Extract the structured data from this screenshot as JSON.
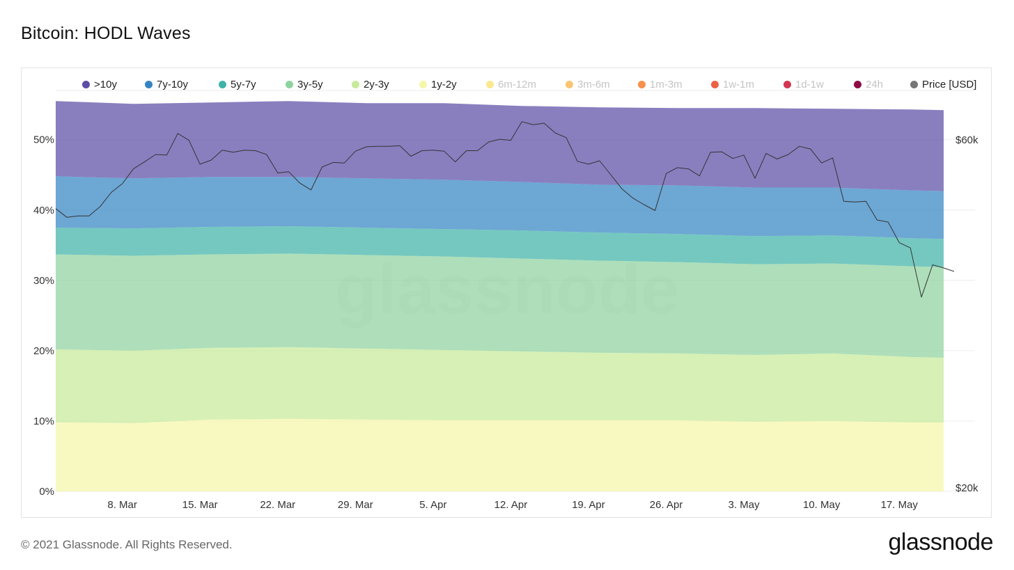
{
  "title": "Bitcoin: HODL Waves",
  "footer": "© 2021 Glassnode. All Rights Reserved.",
  "brand": "glassnode",
  "watermark": "glassnode",
  "legend": [
    {
      "label": ">10y",
      "color": "#5b4ea6",
      "active": true
    },
    {
      "label": "7y-10y",
      "color": "#3585c4",
      "active": true
    },
    {
      "label": "5y-7y",
      "color": "#40b3a8",
      "active": true
    },
    {
      "label": "3y-5y",
      "color": "#8fd2a0",
      "active": true
    },
    {
      "label": "2y-3y",
      "color": "#c8ea9a",
      "active": true
    },
    {
      "label": "1y-2y",
      "color": "#f5f7a8",
      "active": true
    },
    {
      "label": "6m-12m",
      "color": "#fbe88f",
      "active": false
    },
    {
      "label": "3m-6m",
      "color": "#fcc573",
      "active": false
    },
    {
      "label": "1m-3m",
      "color": "#f7914d",
      "active": false
    },
    {
      "label": "1w-1m",
      "color": "#ef5f45",
      "active": false
    },
    {
      "label": "1d-1w",
      "color": "#d33552",
      "active": false
    },
    {
      "label": "24h",
      "color": "#8e0b44",
      "active": false
    },
    {
      "label": "Price [USD]",
      "color": "#777777",
      "active": true
    }
  ],
  "chart_data": {
    "type": "area",
    "stacked": true,
    "x": [
      "2021-03-02",
      "2021-03-09",
      "2021-03-16",
      "2021-03-23",
      "2021-03-30",
      "2021-04-06",
      "2021-04-13",
      "2021-04-20",
      "2021-04-27",
      "2021-05-04",
      "2021-05-11",
      "2021-05-18",
      "2021-05-21"
    ],
    "x_tick_labels": [
      "8. Mar",
      "15. Mar",
      "22. Mar",
      "29. Mar",
      "5. Apr",
      "12. Apr",
      "19. Apr",
      "26. Apr",
      "3. May",
      "10. May",
      "17. May"
    ],
    "x_tick_dates": [
      "2021-03-08",
      "2021-03-15",
      "2021-03-22",
      "2021-03-29",
      "2021-04-05",
      "2021-04-12",
      "2021-04-19",
      "2021-04-26",
      "2021-05-03",
      "2021-05-10",
      "2021-05-17"
    ],
    "ylabel_ticks": [
      "0%",
      "10%",
      "20%",
      "30%",
      "40%",
      "50%"
    ],
    "ylim": [
      0,
      57
    ],
    "y2_ticks": [
      "$20k",
      "$60k"
    ],
    "y2_scale": "log",
    "y2lim": [
      20000,
      70000
    ],
    "series": [
      {
        "name": "1y-2y",
        "values": [
          9.8,
          9.7,
          10.2,
          10.3,
          10.2,
          10.1,
          10.1,
          10.1,
          10.1,
          9.9,
          10.0,
          9.8,
          9.8
        ]
      },
      {
        "name": "2y-3y",
        "values": [
          10.4,
          10.3,
          10.2,
          10.2,
          10.1,
          10.0,
          9.8,
          9.6,
          9.5,
          9.5,
          9.6,
          9.3,
          9.2
        ]
      },
      {
        "name": "3y-5y",
        "values": [
          13.5,
          13.5,
          13.3,
          13.3,
          13.3,
          13.3,
          13.2,
          13.1,
          13.0,
          12.9,
          12.8,
          12.9,
          12.9
        ]
      },
      {
        "name": "5y-7y",
        "values": [
          3.8,
          3.9,
          3.9,
          3.9,
          3.9,
          3.9,
          4.0,
          4.0,
          4.0,
          4.0,
          4.0,
          4.0,
          4.0
        ]
      },
      {
        "name": "7y-10y",
        "values": [
          7.3,
          7.1,
          7.1,
          7.0,
          7.0,
          7.0,
          6.9,
          6.8,
          6.9,
          6.9,
          6.8,
          6.8,
          6.8
        ]
      },
      {
        "name": ">10y",
        "values": [
          10.7,
          10.6,
          10.6,
          10.8,
          10.7,
          10.9,
          10.8,
          11.0,
          11.0,
          11.3,
          11.2,
          11.5,
          11.5
        ]
      }
    ],
    "price": {
      "name": "Price [USD]",
      "x": [
        "2021-03-02",
        "2021-03-03",
        "2021-03-04",
        "2021-03-05",
        "2021-03-06",
        "2021-03-07",
        "2021-03-08",
        "2021-03-09",
        "2021-03-10",
        "2021-03-11",
        "2021-03-12",
        "2021-03-13",
        "2021-03-14",
        "2021-03-15",
        "2021-03-16",
        "2021-03-17",
        "2021-03-18",
        "2021-03-19",
        "2021-03-20",
        "2021-03-21",
        "2021-03-22",
        "2021-03-23",
        "2021-03-24",
        "2021-03-25",
        "2021-03-26",
        "2021-03-27",
        "2021-03-28",
        "2021-03-29",
        "2021-03-30",
        "2021-03-31",
        "2021-04-01",
        "2021-04-02",
        "2021-04-03",
        "2021-04-04",
        "2021-04-05",
        "2021-04-06",
        "2021-04-07",
        "2021-04-08",
        "2021-04-09",
        "2021-04-10",
        "2021-04-11",
        "2021-04-12",
        "2021-04-13",
        "2021-04-14",
        "2021-04-15",
        "2021-04-16",
        "2021-04-17",
        "2021-04-18",
        "2021-04-19",
        "2021-04-20",
        "2021-04-21",
        "2021-04-22",
        "2021-04-23",
        "2021-04-24",
        "2021-04-25",
        "2021-04-26",
        "2021-04-27",
        "2021-04-28",
        "2021-04-29",
        "2021-04-30",
        "2021-05-01",
        "2021-05-02",
        "2021-05-03",
        "2021-05-04",
        "2021-05-05",
        "2021-05-06",
        "2021-05-07",
        "2021-05-08",
        "2021-05-09",
        "2021-05-10",
        "2021-05-11",
        "2021-05-12",
        "2021-05-13",
        "2021-05-14",
        "2021-05-15",
        "2021-05-16",
        "2021-05-17",
        "2021-05-18",
        "2021-05-19",
        "2021-05-20",
        "2021-05-21"
      ],
      "values": [
        48400,
        47100,
        47300,
        47300,
        48700,
        50900,
        52300,
        54800,
        56000,
        57300,
        57200,
        61200,
        59900,
        55600,
        56300,
        58100,
        57700,
        58100,
        58000,
        57300,
        54100,
        54300,
        52400,
        51300,
        55100,
        55900,
        55800,
        57900,
        58700,
        58800,
        58800,
        58900,
        57000,
        58000,
        58100,
        57900,
        56000,
        58000,
        58000,
        59600,
        60100,
        59900,
        63500,
        62900,
        63200,
        61300,
        60400,
        56100,
        55600,
        56200,
        53800,
        51500,
        50000,
        49000,
        48100,
        54000,
        55000,
        54800,
        53600,
        57700,
        57800,
        56600,
        57200,
        53200,
        57500,
        56500,
        57300,
        58800,
        58300,
        55800,
        56700,
        49500,
        49400,
        49500,
        46700,
        46400,
        43500,
        42800,
        36700,
        40600,
        40200
      ]
    }
  }
}
